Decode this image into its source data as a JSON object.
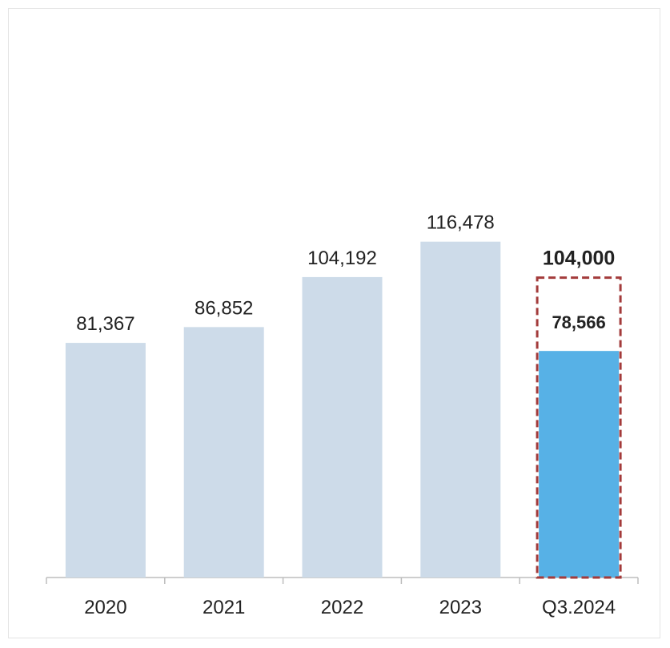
{
  "chart_data": {
    "type": "bar",
    "categories": [
      "2020",
      "2021",
      "2022",
      "2023",
      "Q3.2024"
    ],
    "values": [
      81367,
      86852,
      104192,
      116478,
      78566
    ],
    "value_labels": [
      "81,367",
      "86,852",
      "104,192",
      "116,478",
      "78,566"
    ],
    "target": {
      "category": "Q3.2024",
      "value": 104000,
      "label": "104,000"
    },
    "title": "",
    "xlabel": "",
    "ylabel": "",
    "ylim": [
      0,
      130000
    ],
    "grid": false,
    "legend": "none",
    "colors": {
      "bar": "#cddbe9",
      "highlight_bar": "#57b1e6",
      "target_outline": "#a33b3b",
      "target_label": "#a33b3b",
      "axis": "#bdbdbd",
      "text": "#222222"
    }
  }
}
